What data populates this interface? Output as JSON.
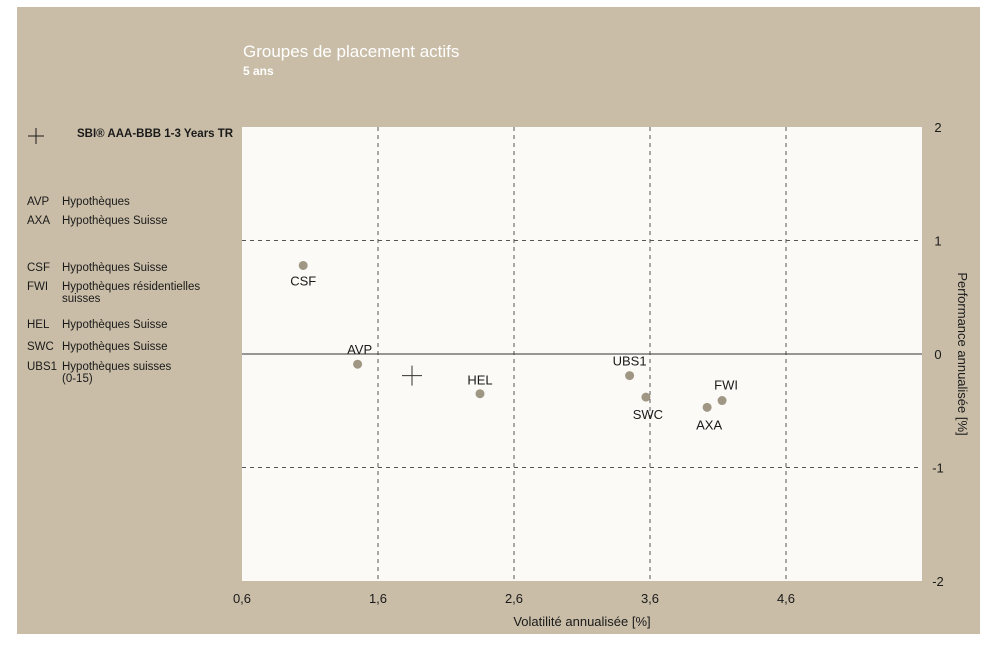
{
  "title": "Groupes de placement actifs",
  "subtitle": "5 ans",
  "reference": {
    "label": "SBI® AAA-BBB 1-3 Years TR",
    "marker_icon": "plus-icon"
  },
  "legend": [
    {
      "code": "AVP",
      "description": "Hypothèques"
    },
    {
      "code": "AXA",
      "description": "Hypothèques Suisse"
    },
    {
      "code": "CSF",
      "description": "Hypothèques Suisse"
    },
    {
      "code": "FWI",
      "description": "Hypothèques résidentielles suisses"
    },
    {
      "code": "HEL",
      "description": "Hypothèques Suisse"
    },
    {
      "code": "SWC",
      "description": "Hypothèques Suisse"
    },
    {
      "code": "UBS1",
      "description": "Hypothèques suisses (0-15)"
    }
  ],
  "colors": {
    "panel_background": "#c9bda7",
    "plot_background": "#fbfaf7",
    "marker": "#a09684",
    "text": "#1a1a1a",
    "title_text": "#ffffff"
  },
  "chart_data": {
    "type": "scatter",
    "xlabel": "Volatilité annualisée [%]",
    "ylabel": "Performance annualisée [%]",
    "xlim": [
      0.6,
      5.6
    ],
    "ylim": [
      -2,
      2
    ],
    "x_ticks": [
      "0,6",
      "1,6",
      "2,6",
      "3,6",
      "4,6"
    ],
    "y_ticks": [
      "2",
      "1",
      "0",
      "-1",
      "-2"
    ],
    "x_tick_values": [
      0.6,
      1.6,
      2.6,
      3.6,
      4.6
    ],
    "y_tick_values": [
      2,
      1,
      0,
      -1,
      -2
    ],
    "grid": "dashed",
    "y_axis_side": "right",
    "points": [
      {
        "label": "CSF",
        "x": 1.05,
        "y": 0.78
      },
      {
        "label": "AVP",
        "x": 1.45,
        "y": -0.09
      },
      {
        "label": "HEL",
        "x": 2.35,
        "y": -0.35
      },
      {
        "label": "UBS1",
        "x": 3.45,
        "y": -0.19
      },
      {
        "label": "SWC",
        "x": 3.57,
        "y": -0.38
      },
      {
        "label": "FWI",
        "x": 4.13,
        "y": -0.41
      },
      {
        "label": "AXA",
        "x": 4.02,
        "y": -0.47
      }
    ],
    "reference_point": {
      "label": "SBI® AAA-BBB 1-3 Years TR",
      "x": 1.85,
      "y": -0.19
    }
  }
}
